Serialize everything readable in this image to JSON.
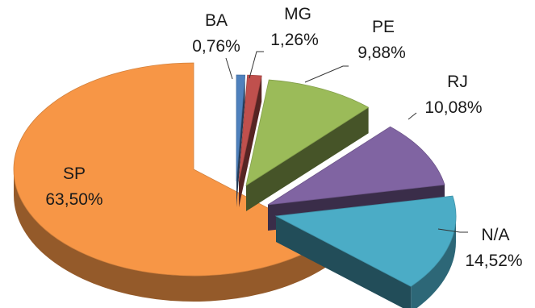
{
  "chart_data": {
    "type": "pie",
    "style": "3d-exploded",
    "title": "",
    "slices": [
      {
        "label": "BA",
        "value": 0.76,
        "display": "0,76%",
        "color": "#4F81BD"
      },
      {
        "label": "MG",
        "value": 1.26,
        "display": "1,26%",
        "color": "#C0504D"
      },
      {
        "label": "PE",
        "value": 9.88,
        "display": "9,88%",
        "color": "#9BBB59"
      },
      {
        "label": "RJ",
        "value": 10.08,
        "display": "10,08%",
        "color": "#8064A2"
      },
      {
        "label": "N/A",
        "value": 14.52,
        "display": "14,52%",
        "color": "#4BACC6"
      },
      {
        "label": "SP",
        "value": 63.5,
        "display": "63,50%",
        "color": "#F79646"
      }
    ],
    "legend": "none"
  }
}
